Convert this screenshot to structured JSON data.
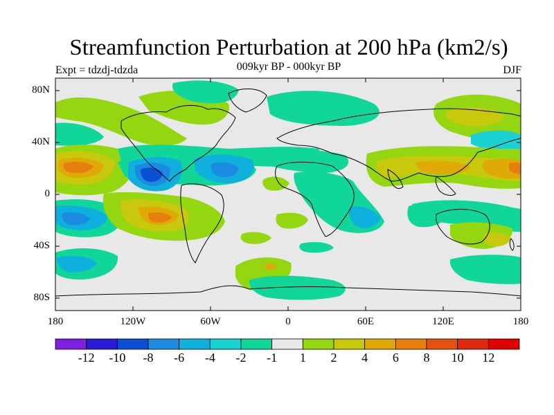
{
  "title": "Streamfunction Perturbation at 200 hPa (km2/s)",
  "subtitle_left": "Expt = tdzdj-tdzda",
  "subtitle_center": "009kyr BP - 000kyr BP",
  "subtitle_right": "DJF",
  "lat_labels": [
    "80N",
    "40N",
    "0",
    "40S",
    "80S"
  ],
  "lon_labels": [
    "180",
    "120W",
    "60W",
    "0",
    "60E",
    "120E",
    "180"
  ],
  "colorbar": {
    "labels": [
      "-12",
      "-10",
      "-8",
      "-6",
      "-4",
      "-2",
      "-1",
      "1",
      "2",
      "4",
      "6",
      "8",
      "10",
      "12"
    ],
    "colors": [
      "#7f1fe0",
      "#2a1ad6",
      "#0b4fd4",
      "#1a8be0",
      "#10b0dc",
      "#1ad1d4",
      "#10d69a",
      "#e8e8e8",
      "#94d60f",
      "#c8c80c",
      "#dfaa08",
      "#e67f0d",
      "#e4520f",
      "#dd2a10",
      "#e00000"
    ]
  },
  "colors": {
    "background": "#e8e8e8",
    "coast": "#000000"
  }
}
